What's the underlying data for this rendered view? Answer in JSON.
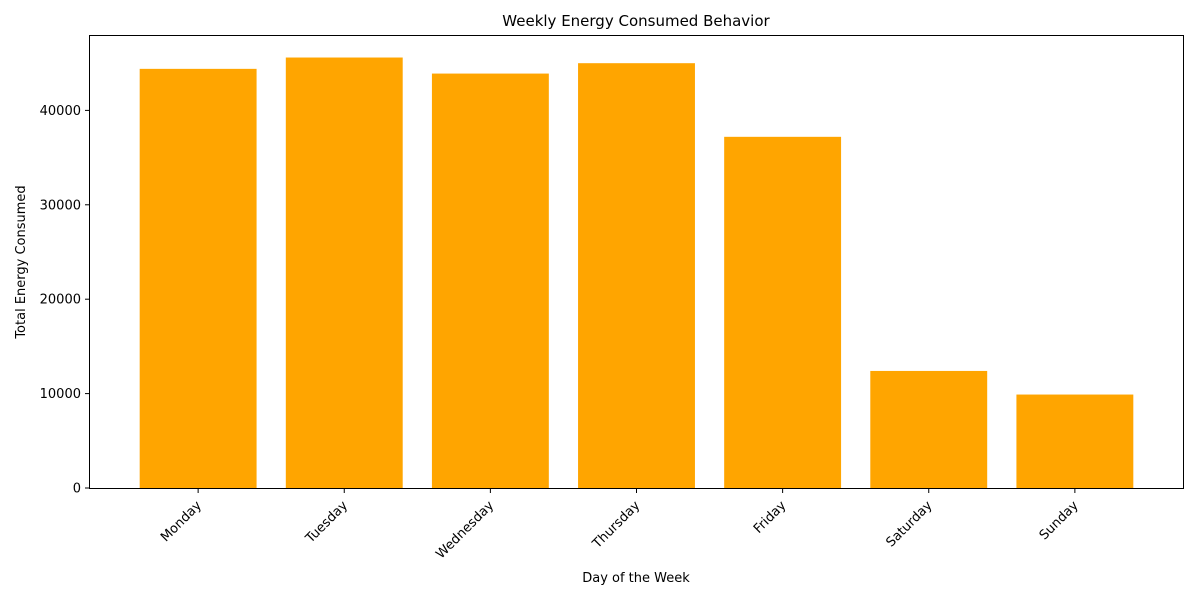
{
  "chart_data": {
    "type": "bar",
    "title": "Weekly Energy Consumed Behavior",
    "xlabel": "Day of the Week",
    "ylabel": "Total Energy Consumed",
    "categories": [
      "Monday",
      "Tuesday",
      "Wednesday",
      "Thursday",
      "Friday",
      "Saturday",
      "Sunday"
    ],
    "values": [
      44400,
      45600,
      43900,
      45000,
      37200,
      12400,
      9900
    ],
    "ylim": [
      0,
      47880
    ],
    "yticks": [
      0,
      10000,
      20000,
      30000,
      40000
    ],
    "ytick_labels": [
      "0",
      "10000",
      "20000",
      "30000",
      "40000"
    ],
    "bar_color": "#ffa500",
    "grid": false,
    "legend": "none",
    "xtick_rotation_deg": 45
  }
}
